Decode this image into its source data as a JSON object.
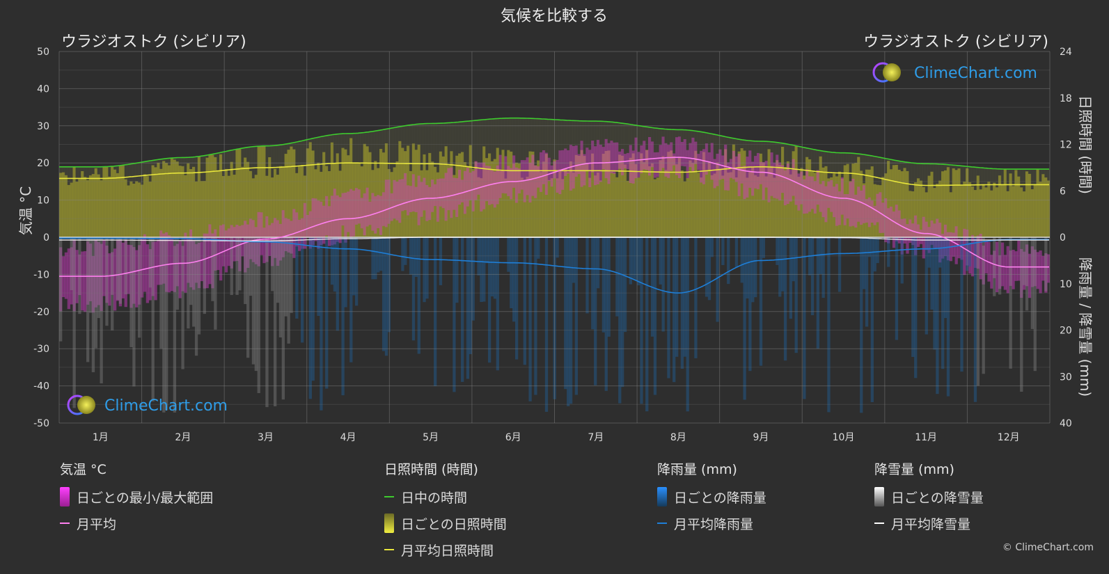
{
  "title": "気候を比較する",
  "location_left": "ウラジオストク (シビリア)",
  "location_right": "ウラジオストク (シビリア)",
  "logo_text": "ClimeChart.com",
  "copyright": "© ClimeChart.com",
  "colors": {
    "daylight": "#3ecb2e",
    "sunshine": "#e8e63c",
    "sunshine_fill": "#b8b52a",
    "temp_range": "#d63cc9",
    "temp_mean": "#ff80f0",
    "rain": "#1e7fd8",
    "rain_fill": "#1f5f9a",
    "snow": "#ffffff",
    "snow_fill": "#8a8a8a"
  },
  "legend": {
    "temp": {
      "header": "気温 °C",
      "range": "日ごとの最小/最大範囲",
      "mean": "月平均"
    },
    "sun": {
      "header": "日照時間 (時間)",
      "daylight": "日中の時間",
      "daily": "日ごとの日照時間",
      "mean": "月平均日照時間"
    },
    "rain": {
      "header": "降雨量 (mm)",
      "daily": "日ごとの降雨量",
      "mean": "月平均降雨量"
    },
    "snow": {
      "header": "降雪量 (mm)",
      "daily": "日ごとの降雪量",
      "mean": "月平均降雪量"
    }
  },
  "chart_data": {
    "type": "line",
    "x": [
      "1月",
      "2月",
      "3月",
      "4月",
      "5月",
      "6月",
      "7月",
      "8月",
      "9月",
      "10月",
      "11月",
      "12月"
    ],
    "left_axis": {
      "label": "気温 °C",
      "ylim": [
        -50,
        50
      ],
      "ticks": [
        "50",
        "40",
        "30",
        "20",
        "10",
        "0",
        "-10",
        "-20",
        "-30",
        "-40",
        "-50"
      ]
    },
    "right_axis_top": {
      "label": "日照時間 (時間)",
      "ylim": [
        0,
        24
      ],
      "ticks": [
        "24",
        "18",
        "12",
        "6",
        "0"
      ]
    },
    "right_axis_bottom": {
      "label": "降雨量 / 降雪量 (mm)",
      "ylim": [
        0,
        40
      ],
      "ticks": [
        "10",
        "20",
        "30",
        "40"
      ]
    },
    "grid": true,
    "series": [
      {
        "name": "日中の時間",
        "axis": "sun",
        "values": [
          9.1,
          10.3,
          11.8,
          13.4,
          14.7,
          15.4,
          15.0,
          13.9,
          12.4,
          10.9,
          9.5,
          8.8
        ]
      },
      {
        "name": "月平均日照時間",
        "axis": "sun",
        "values": [
          7.6,
          8.3,
          9.0,
          9.6,
          9.5,
          8.6,
          8.6,
          8.4,
          9.1,
          8.3,
          6.7,
          6.8
        ]
      },
      {
        "name": "月平均",
        "axis": "temp",
        "values": [
          -10.5,
          -7.0,
          -0.5,
          5.0,
          10.5,
          15.0,
          20.0,
          21.5,
          17.5,
          10.5,
          1.0,
          -8.0
        ]
      },
      {
        "name": "日ごとの最小/最大範囲 (max)",
        "axis": "temp",
        "values": [
          -3,
          0,
          5,
          11,
          16,
          20,
          24,
          25,
          21,
          14,
          4,
          -3
        ]
      },
      {
        "name": "日ごとの最小/最大範囲 (min)",
        "axis": "temp",
        "values": [
          -18,
          -14,
          -6,
          1,
          6,
          11,
          16,
          18,
          12,
          5,
          -4,
          -14
        ]
      },
      {
        "name": "月平均降雨量",
        "axis": "precip",
        "values": [
          0.2,
          0.3,
          1.0,
          2.5,
          4.8,
          5.5,
          6.8,
          12.0,
          5.0,
          3.5,
          2.5,
          0.5
        ]
      },
      {
        "name": "月平均降雪量",
        "axis": "precip",
        "values": [
          0.6,
          0.7,
          0.8,
          0.3,
          0.0,
          0.0,
          0.0,
          0.0,
          0.0,
          0.1,
          0.6,
          0.6
        ]
      }
    ]
  }
}
